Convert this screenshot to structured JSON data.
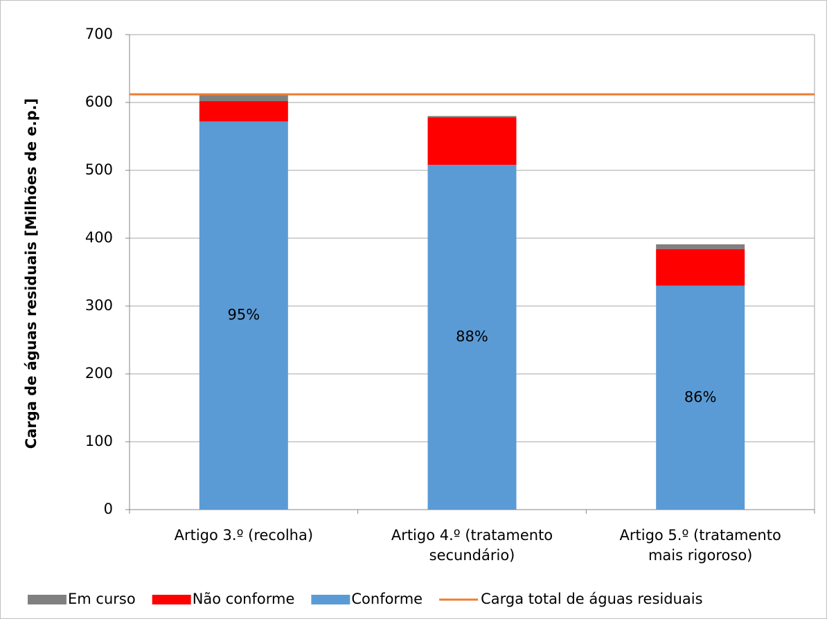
{
  "chart_data": {
    "type": "stacked_bar",
    "y_label": "Carga de águas residuais [Milhões de e.p.]",
    "categories": [
      [
        "Artigo 3.º (recolha)"
      ],
      [
        "Artigo 4.º (tratamento",
        "secundário)"
      ],
      [
        "Artigo 5.º (tratamento",
        "mais rigoroso)"
      ]
    ],
    "series": [
      {
        "name": "Em curso",
        "color": "#808080",
        "values": [
          9,
          2,
          7
        ]
      },
      {
        "name": "Não conforme",
        "color": "#ff0000",
        "values": [
          30,
          70,
          54
        ]
      },
      {
        "name": "Conforme",
        "color": "#5b9bd5",
        "values": [
          572,
          508,
          330
        ],
        "value_labels": [
          "95%",
          "88%",
          "86%"
        ]
      }
    ],
    "reference_line": {
      "name": "Carga total de águas residuais",
      "color": "#ed7d31",
      "value": 612
    },
    "ylim": [
      0,
      700
    ],
    "yticks": [
      0,
      100,
      200,
      300,
      400,
      500,
      600,
      700
    ],
    "grid": true,
    "legend": "bottom"
  }
}
